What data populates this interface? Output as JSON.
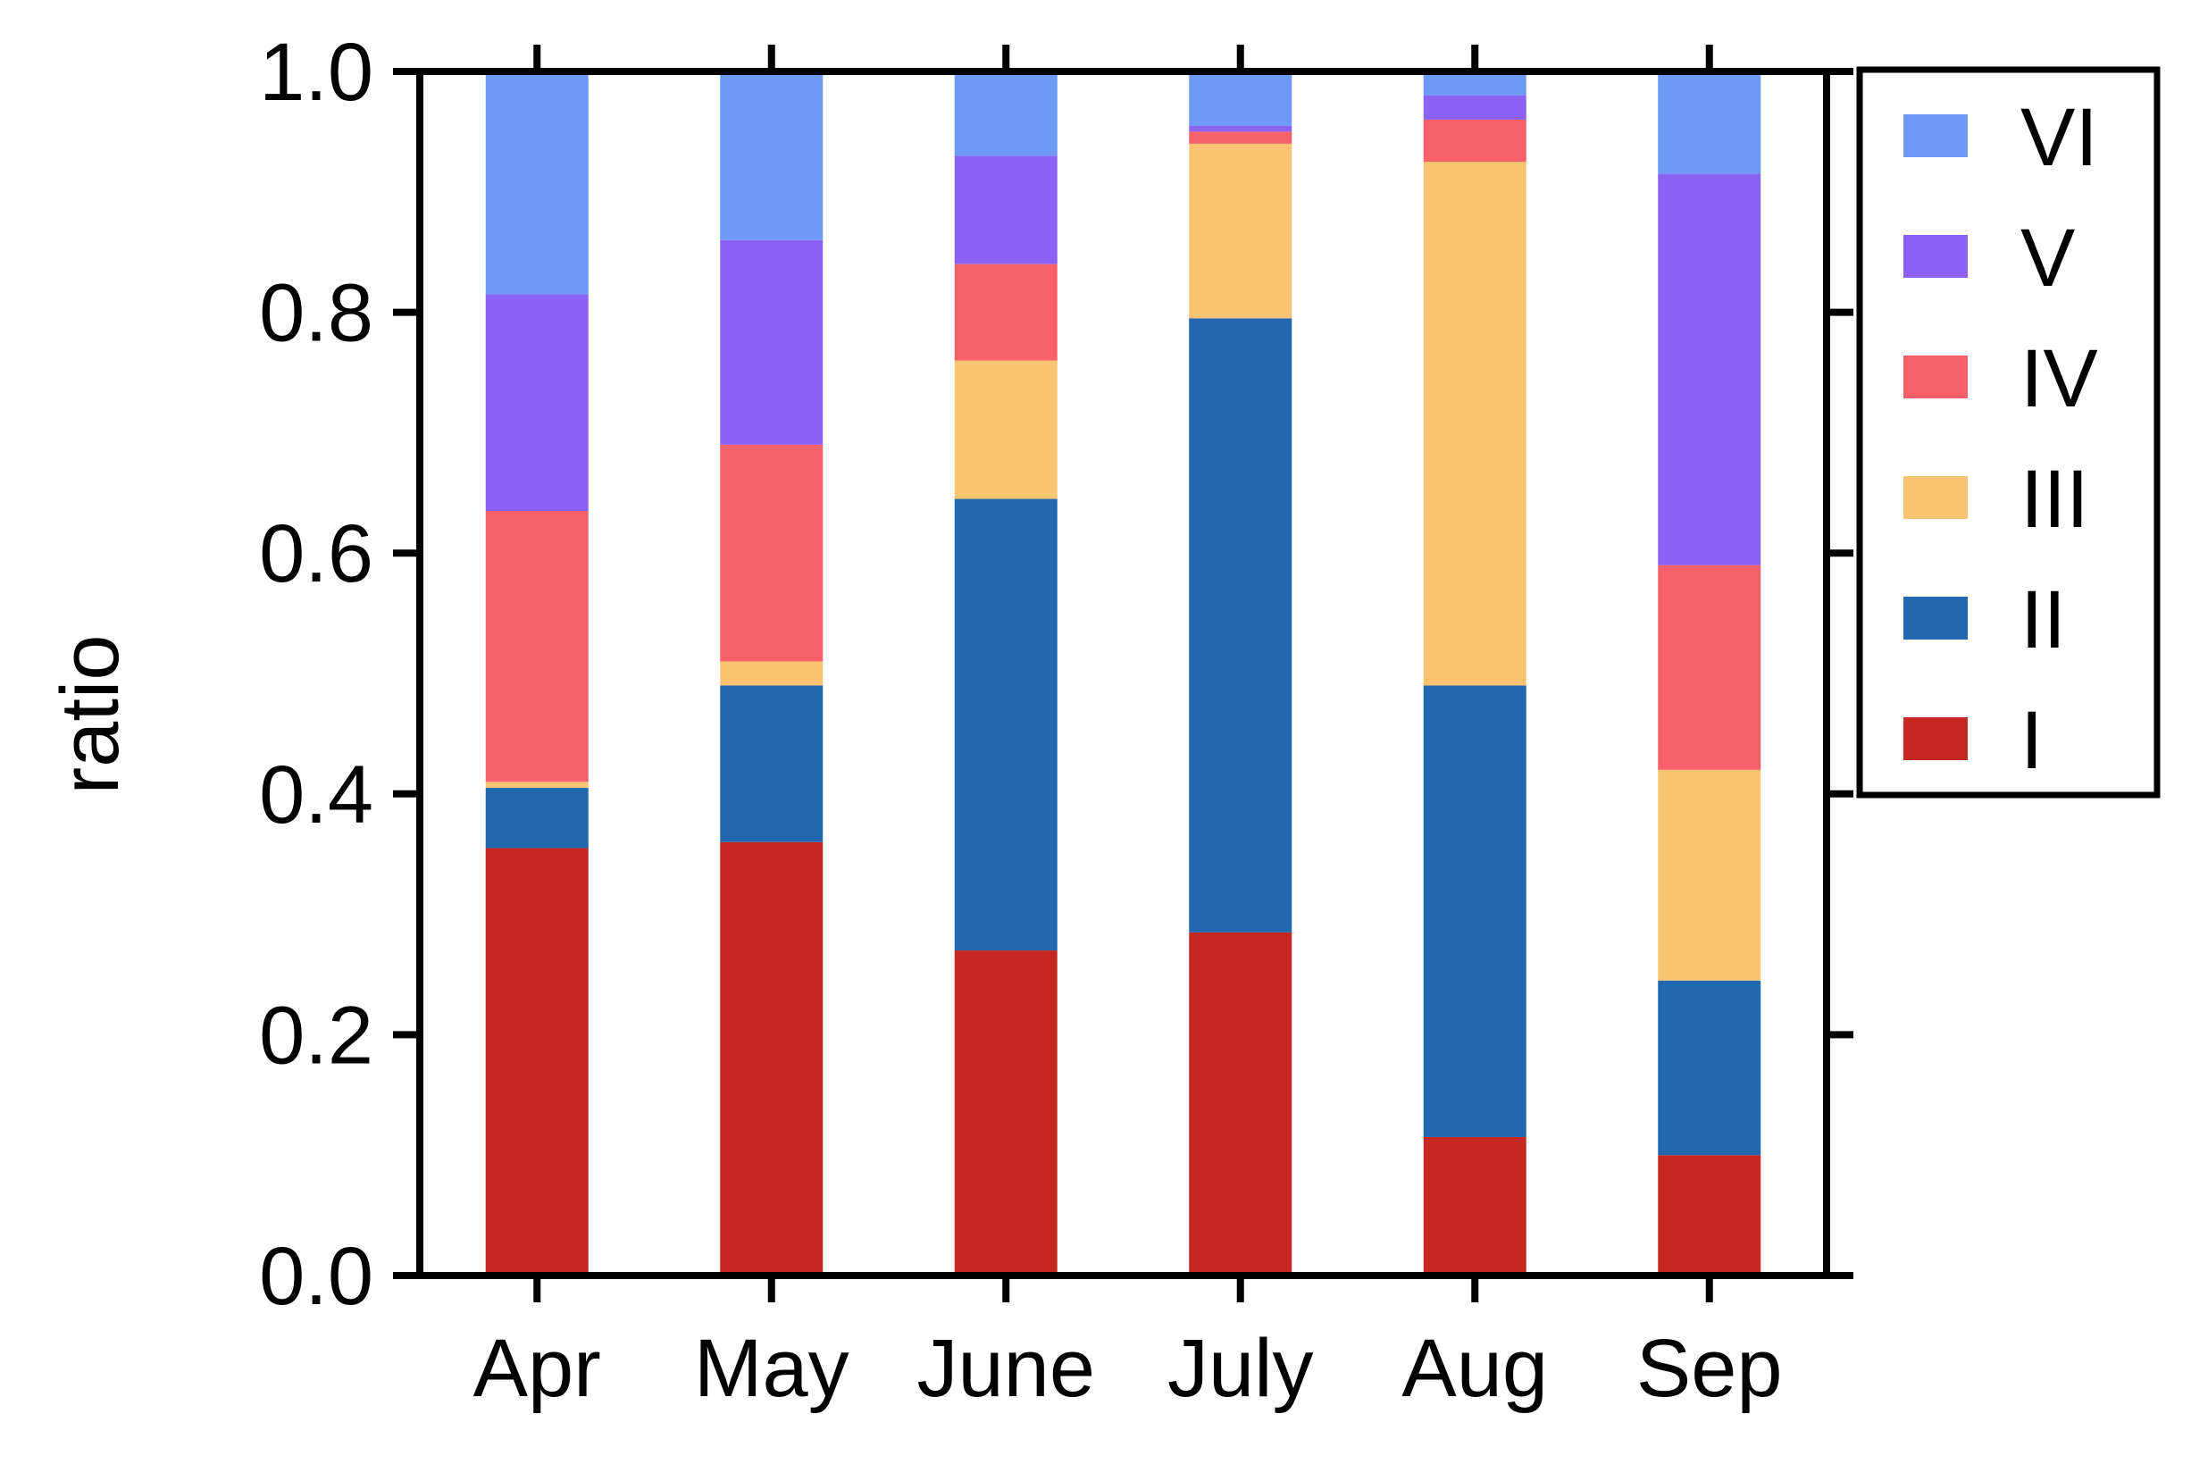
{
  "chart_data": {
    "type": "bar",
    "stacked": true,
    "categories": [
      "Apr",
      "May",
      "June",
      "July",
      "Aug",
      "Sep"
    ],
    "ylabel": "ratio",
    "xlabel": "",
    "ylim": [
      0,
      1
    ],
    "yticks": [
      "0.0",
      "0.2",
      "0.4",
      "0.6",
      "0.8",
      "1.0"
    ],
    "legend_position": "top-right outside",
    "grid": false,
    "series": [
      {
        "name": "I",
        "color": "#c62821",
        "values": [
          0.355,
          0.36,
          0.27,
          0.285,
          0.115,
          0.1
        ]
      },
      {
        "name": "II",
        "color": "#2268b1",
        "values": [
          0.05,
          0.13,
          0.375,
          0.51,
          0.375,
          0.145
        ]
      },
      {
        "name": "III",
        "color": "#f8c472",
        "values": [
          0.005,
          0.02,
          0.115,
          0.145,
          0.435,
          0.175
        ]
      },
      {
        "name": "IV",
        "color": "#f9616a",
        "values": [
          0.225,
          0.18,
          0.08,
          0.01,
          0.035,
          0.17
        ]
      },
      {
        "name": "V",
        "color": "#8b62f3",
        "values": [
          0.18,
          0.17,
          0.09,
          0.005,
          0.02,
          0.325
        ]
      },
      {
        "name": "VI",
        "color": "#6c9af6",
        "values": [
          0.185,
          0.14,
          0.07,
          0.045,
          0.02,
          0.085
        ]
      }
    ]
  }
}
